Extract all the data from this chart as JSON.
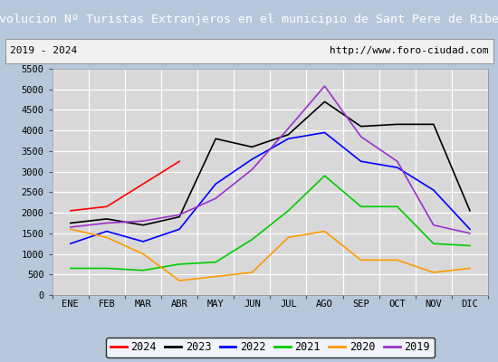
{
  "title": "Evolucion Nº Turistas Extranjeros en el municipio de Sant Pere de Ribes",
  "subtitle_left": "2019 - 2024",
  "subtitle_right": "http://www.foro-ciudad.com",
  "title_bg_color": "#4472c4",
  "title_text_color": "#ffffff",
  "subtitle_bg_color": "#f0f0f0",
  "plot_bg_color": "#d8d8d8",
  "grid_color": "#ffffff",
  "outer_bg_color": "#b8c8dc",
  "x_labels": [
    "ENE",
    "FEB",
    "MAR",
    "ABR",
    "MAY",
    "JUN",
    "JUL",
    "AGO",
    "SEP",
    "OCT",
    "NOV",
    "DIC"
  ],
  "ylim": [
    0,
    5500
  ],
  "yticks": [
    0,
    500,
    1000,
    1500,
    2000,
    2500,
    3000,
    3500,
    4000,
    4500,
    5000,
    5500
  ],
  "series": [
    {
      "label": "2024",
      "color": "#ff0000",
      "data": [
        2050,
        2150,
        2700,
        3250,
        null,
        null,
        null,
        null,
        null,
        null,
        null,
        null
      ]
    },
    {
      "label": "2023",
      "color": "#000000",
      "data": [
        1750,
        1850,
        1700,
        1900,
        3800,
        3600,
        3900,
        4700,
        4100,
        4150,
        4150,
        2050
      ]
    },
    {
      "label": "2022",
      "color": "#0000ff",
      "data": [
        1250,
        1550,
        1300,
        1600,
        2700,
        3300,
        3800,
        3950,
        3250,
        3100,
        2550,
        1600
      ]
    },
    {
      "label": "2021",
      "color": "#00cc00",
      "data": [
        650,
        650,
        600,
        750,
        800,
        1350,
        2050,
        2900,
        2150,
        2150,
        1250,
        1200
      ]
    },
    {
      "label": "2020",
      "color": "#ff9900",
      "data": [
        1600,
        1400,
        1000,
        350,
        450,
        550,
        1400,
        1550,
        850,
        850,
        550,
        650
      ]
    },
    {
      "label": "2019",
      "color": "#9933cc",
      "data": [
        1650,
        1750,
        1800,
        1950,
        2350,
        3050,
        4050,
        5080,
        3850,
        3250,
        1700,
        1500
      ]
    }
  ],
  "legend_border_color": "#000000",
  "legend_bg_color": "#ffffff",
  "title_fontsize": 9.5,
  "subtitle_fontsize": 8.0,
  "tick_fontsize": 7.5,
  "legend_fontsize": 8.5
}
